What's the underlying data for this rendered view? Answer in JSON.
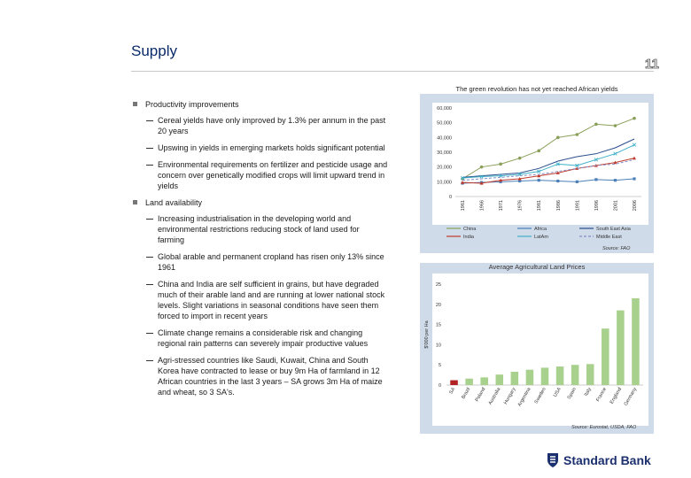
{
  "header": {
    "title": "Supply",
    "page_number": "11"
  },
  "bullets": [
    {
      "text": "Productivity improvements",
      "subs": [
        "Cereal yields have only improved by 1.3% per annum in the past 20 years",
        "Upswing in yields in emerging markets holds significant potential",
        "Environmental requirements on fertilizer and pesticide usage and concern over genetically modified crops will limit upward trend in yields"
      ]
    },
    {
      "text": "Land availability",
      "subs": [
        "Increasing industrialisation in the developing world and environmental restrictions reducing stock of land used for farming",
        "Global arable and permanent cropland has risen only 13% since 1961",
        "China and India are self sufficient in grains, but have degraded much of their arable land and are running at lower national stock levels. Slight variations in seasonal conditions have seen them forced to import in recent years",
        "Climate change remains a considerable risk and changing regional rain patterns can severely impair productive values",
        "Agri-stressed countries like Saudi, Kuwait, China and South Korea have contracted to lease or buy 9m Ha of farmland in 12 African countries in the last 3 years – SA grows 3m Ha of maize and wheat, so 3 SA's."
      ]
    }
  ],
  "footer": {
    "brand": "Standard Bank"
  },
  "chart_data": [
    {
      "type": "line",
      "title": "The green revolution has not yet reached African yields",
      "source": "Source: FAO",
      "x": [
        "1961",
        "1966",
        "1971",
        "1976",
        "1981",
        "1986",
        "1991",
        "1996",
        "2001",
        "2006"
      ],
      "ylim": [
        0,
        60000
      ],
      "yticks": [
        "0",
        "10,000",
        "20,000",
        "30,000",
        "40,000",
        "50,000",
        "60,000"
      ],
      "series": [
        {
          "name": "China",
          "color": "#8aa05a",
          "marker": "circle",
          "dash": "",
          "values": [
            12000,
            20000,
            22000,
            26000,
            31000,
            40000,
            42000,
            49000,
            48000,
            53000
          ]
        },
        {
          "name": "Africa",
          "color": "#4b7fb8",
          "marker": "square",
          "dash": "",
          "values": [
            9000,
            9500,
            10000,
            10500,
            11000,
            10500,
            10000,
            11500,
            11000,
            12000
          ]
        },
        {
          "name": "South East Asia",
          "color": "#2b4d8c",
          "marker": "",
          "dash": "",
          "values": [
            13000,
            14000,
            15000,
            16000,
            19000,
            24000,
            27000,
            29000,
            33000,
            39000
          ]
        },
        {
          "name": "India",
          "color": "#c0392b",
          "marker": "triangle",
          "dash": "",
          "values": [
            9500,
            9000,
            11000,
            12000,
            14000,
            16000,
            19000,
            21000,
            23000,
            26000
          ]
        },
        {
          "name": "LatAm",
          "color": "#3fb0c8",
          "marker": "x",
          "dash": "",
          "values": [
            12500,
            13500,
            14000,
            15000,
            17000,
            22000,
            21000,
            25000,
            29000,
            35000
          ]
        },
        {
          "name": "Middle East",
          "color": "#7f8fc8",
          "marker": "",
          "dash": "3,2",
          "values": [
            11000,
            12000,
            13000,
            14000,
            15000,
            17000,
            19000,
            21000,
            22000,
            25000
          ]
        }
      ]
    },
    {
      "type": "bar",
      "title": "Average Agricultural Land Prices",
      "source": "Source: Eurostat, USDA, FAO",
      "ylabel": "$'000 per Ha",
      "ylim": [
        0,
        25
      ],
      "yticks": [
        "0",
        "5",
        "10",
        "15",
        "20",
        "25"
      ],
      "categories": [
        "SA",
        "Brazil",
        "Poland",
        "Australia",
        "Hungary",
        "Argentina",
        "Sweden",
        "USA",
        "Spain",
        "Italy",
        "France",
        "England",
        "Germany"
      ],
      "values": [
        1.2,
        1.6,
        1.9,
        2.6,
        3.3,
        3.8,
        4.3,
        4.6,
        5.0,
        5.2,
        14.0,
        18.5,
        21.5
      ],
      "highlight_color": "#b22222",
      "bar_color": "#a9d18e"
    }
  ]
}
